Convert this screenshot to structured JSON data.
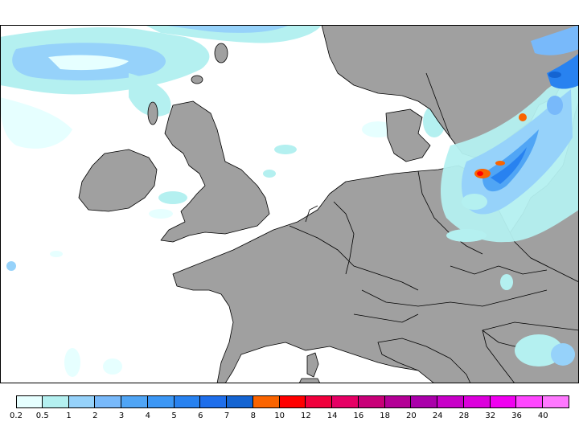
{
  "map": {
    "colors": {
      "sea": "#ffffff",
      "land": "#a0a0a0",
      "border": "#000000"
    }
  },
  "legend": {
    "labels": [
      "0.2",
      "0.5",
      "1",
      "2",
      "3",
      "4",
      "5",
      "6",
      "7",
      "8",
      "10",
      "12",
      "14",
      "16",
      "18",
      "20",
      "24",
      "28",
      "32",
      "36",
      "40"
    ],
    "colors": [
      "#e6ffff",
      "#b4f0f0",
      "#96d2fa",
      "#78b9fa",
      "#50a5f5",
      "#3c97f5",
      "#2882f0",
      "#1e6eeb",
      "#1464d2",
      "#fa6400",
      "#ff0000",
      "#f0003c",
      "#e60064",
      "#c80078",
      "#b40096",
      "#aa00aa",
      "#c800c8",
      "#dc00dc",
      "#f000f0",
      "#ff46ff",
      "#ff78ff"
    ]
  }
}
